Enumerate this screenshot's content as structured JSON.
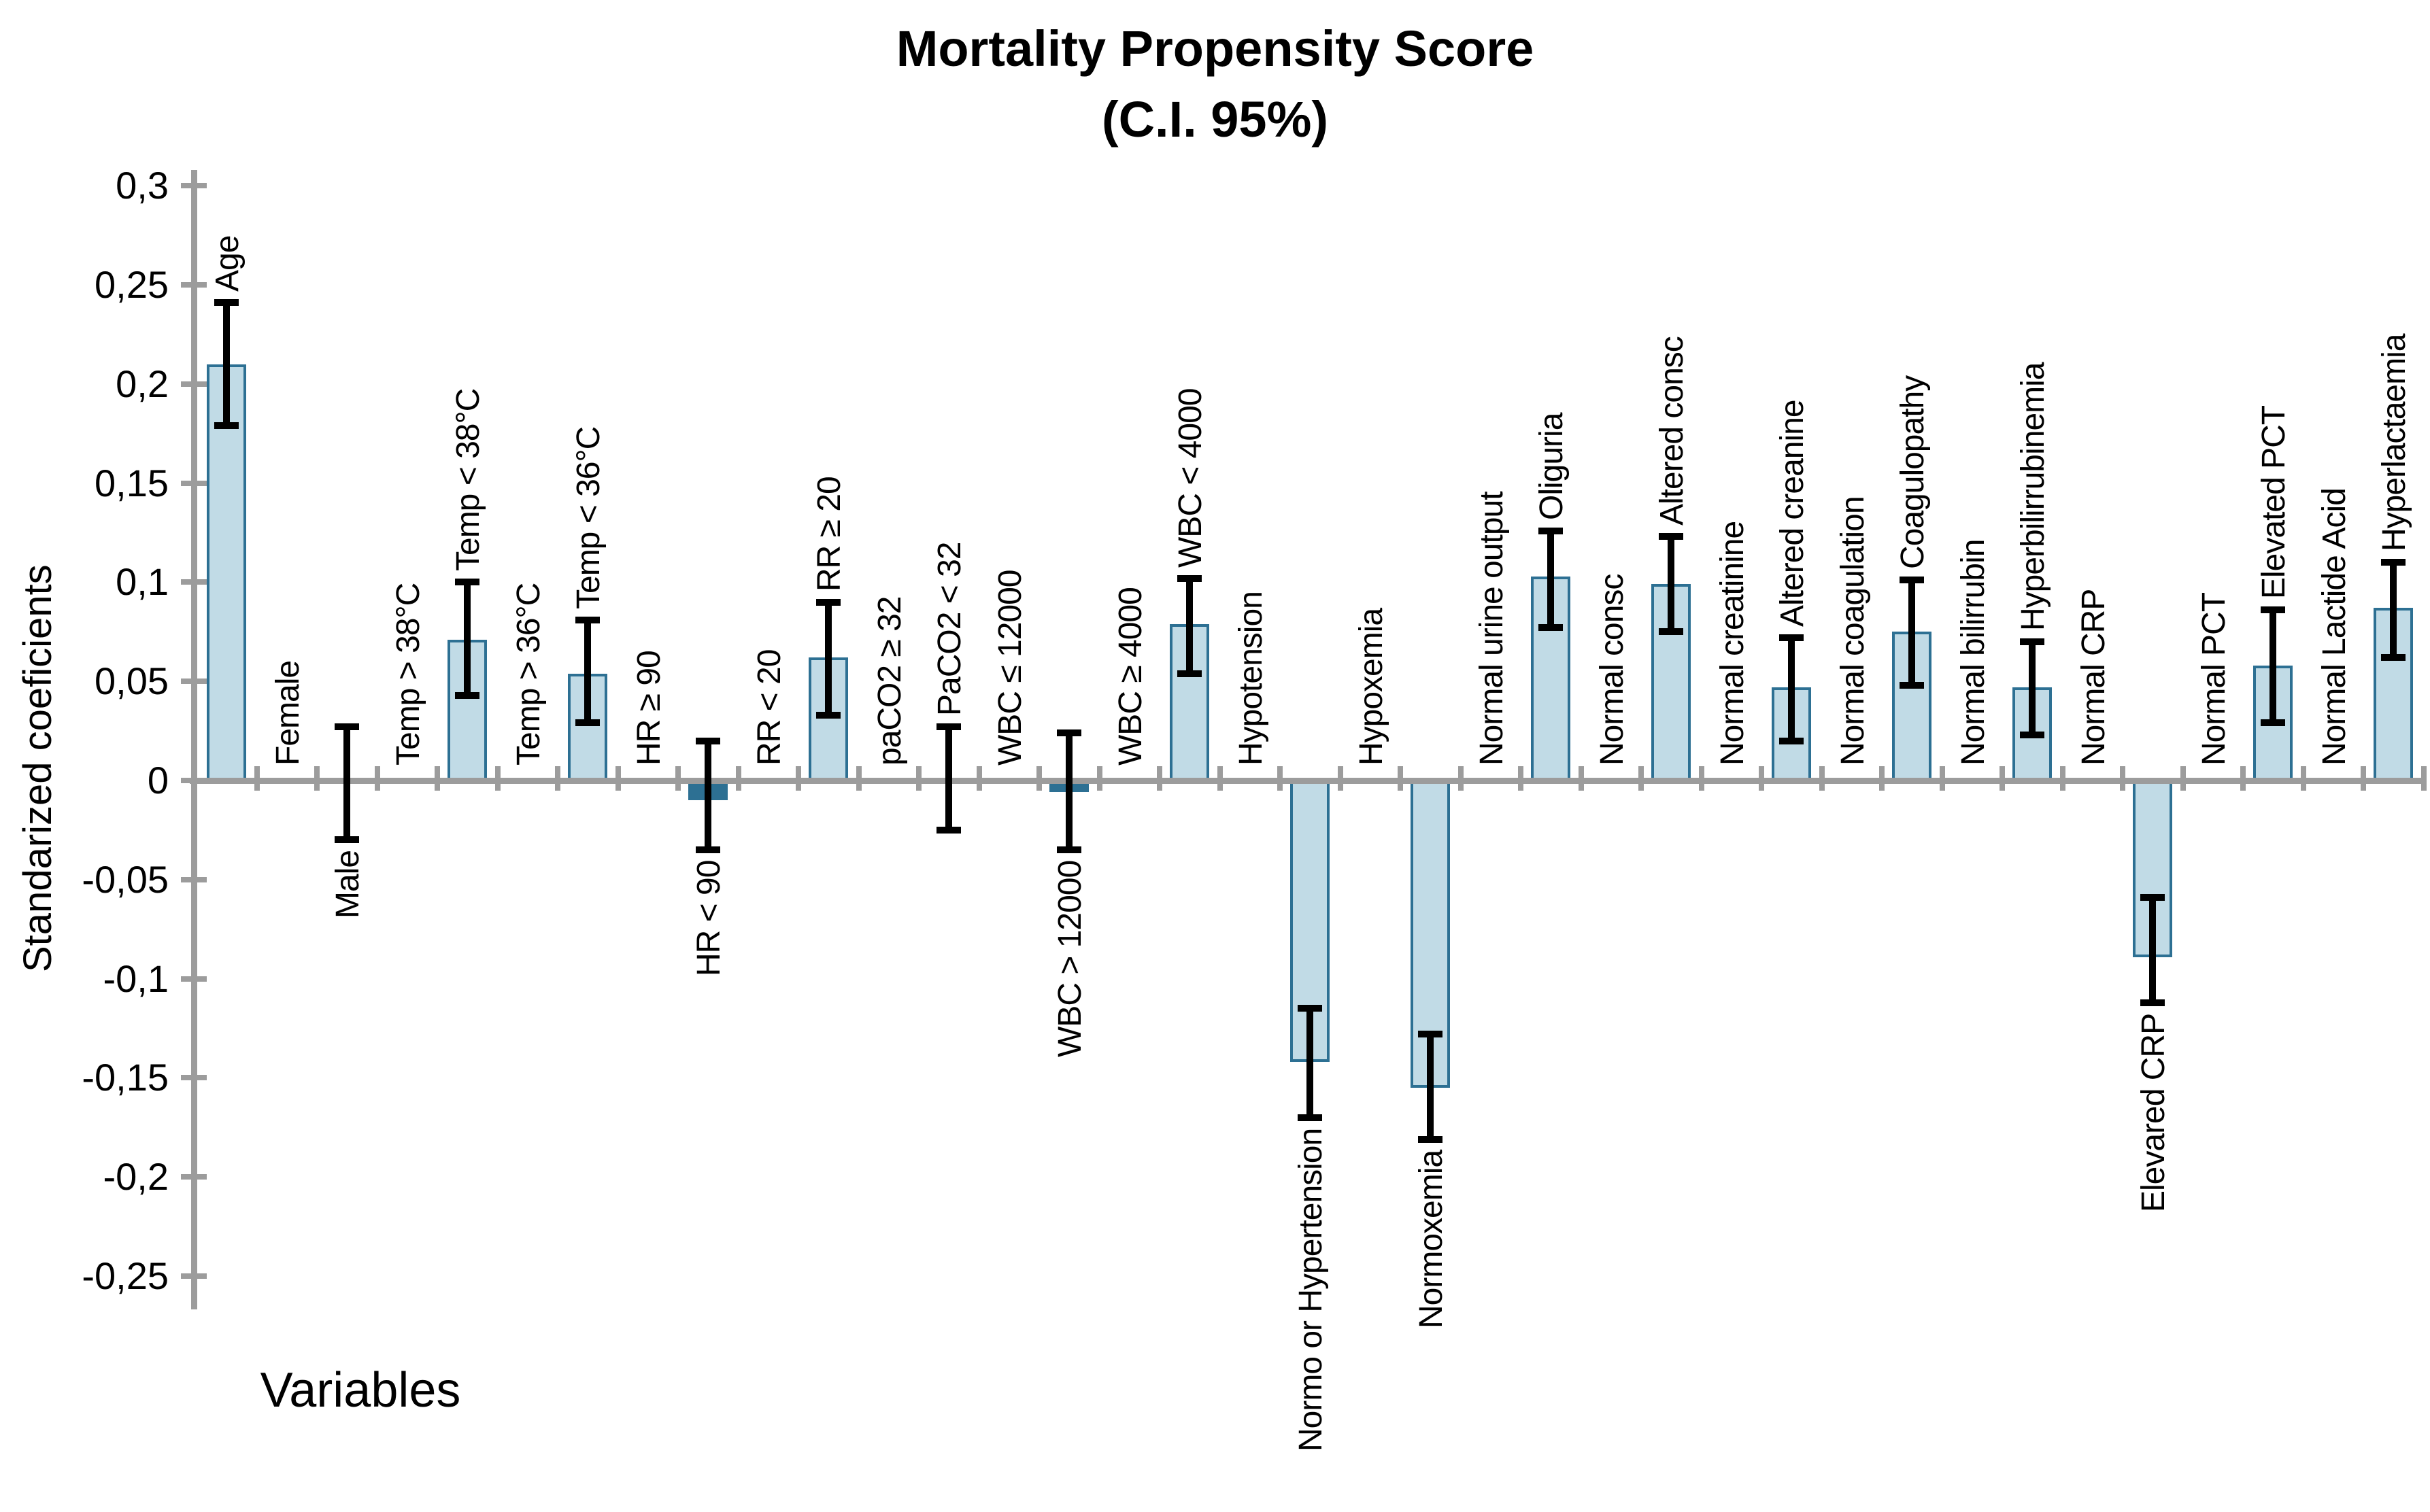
{
  "chart_data": {
    "type": "bar",
    "title": "Mortality Propensity Score",
    "subtitle": "(C.I. 95%)",
    "ylabel": "Standarized coeficients",
    "xlabel": "Variables",
    "ylim": [
      -0.25,
      0.3
    ],
    "ytick_step": 0.05,
    "grid": false,
    "legend": null,
    "error_bars": "95% confidence interval",
    "decimal_separator": ",",
    "colors": {
      "bar_fill": "#c1dbe6",
      "bar_border": "#2d7093",
      "bar_solid": "#2d7093",
      "axis": "#9c9c9c",
      "error": "#000000",
      "text": "#000000",
      "background": "#ffffff"
    },
    "yticks": [
      {
        "value": 0.3,
        "label": "0,3"
      },
      {
        "value": 0.25,
        "label": "0,25"
      },
      {
        "value": 0.2,
        "label": "0,2"
      },
      {
        "value": 0.15,
        "label": "0,15"
      },
      {
        "value": 0.1,
        "label": "0,1"
      },
      {
        "value": 0.05,
        "label": "0,05"
      },
      {
        "value": 0,
        "label": "0"
      },
      {
        "value": -0.05,
        "label": "-0,05"
      },
      {
        "value": -0.1,
        "label": "-0,1"
      },
      {
        "value": -0.15,
        "label": "-0,15"
      },
      {
        "value": -0.2,
        "label": "-0,2"
      },
      {
        "value": -0.25,
        "label": "-0,25"
      }
    ],
    "categories": [
      {
        "label": "Age",
        "value": 0.21,
        "ci": [
          0.179,
          0.241
        ],
        "side": "above"
      },
      {
        "label": "Female",
        "value": null,
        "ci": null,
        "side": "above"
      },
      {
        "label": "Male",
        "value": null,
        "ci": [
          -0.03,
          0.027
        ],
        "side": "below"
      },
      {
        "label": "Temp > 38°C",
        "value": null,
        "ci": null,
        "side": "above"
      },
      {
        "label": "Temp < 38°C",
        "value": 0.071,
        "ci": [
          0.043,
          0.1
        ],
        "side": "above"
      },
      {
        "label": "Temp > 36°C",
        "value": null,
        "ci": null,
        "side": "above"
      },
      {
        "label": "Temp < 36°C",
        "value": 0.054,
        "ci": [
          0.029,
          0.081
        ],
        "side": "above"
      },
      {
        "label": "HR ≥ 90",
        "value": null,
        "ci": null,
        "side": "above"
      },
      {
        "label": "HR < 90",
        "value": -0.01,
        "ci": [
          -0.035,
          0.02
        ],
        "side": "below",
        "solid": true
      },
      {
        "label": "RR < 20",
        "value": null,
        "ci": null,
        "side": "above"
      },
      {
        "label": "RR ≥ 20",
        "value": 0.062,
        "ci": [
          0.033,
          0.09
        ],
        "side": "above"
      },
      {
        "label": "paCO2 ≥ 32",
        "value": null,
        "ci": null,
        "side": "above"
      },
      {
        "label": "PaCO2 < 32",
        "value": null,
        "ci": [
          -0.025,
          0.027
        ],
        "side": "above"
      },
      {
        "label": "WBC ≤ 12000",
        "value": null,
        "ci": null,
        "side": "above"
      },
      {
        "label": "WBC > 12000",
        "value": -0.006,
        "ci": [
          -0.035,
          0.024
        ],
        "side": "below",
        "solid": true
      },
      {
        "label": "WBC ≥ 4000",
        "value": null,
        "ci": null,
        "side": "above"
      },
      {
        "label": "WBC < 4000",
        "value": 0.079,
        "ci": [
          0.054,
          0.102
        ],
        "side": "above"
      },
      {
        "label": "Hypotension",
        "value": null,
        "ci": null,
        "side": "above"
      },
      {
        "label": "Normo or Hypertension",
        "value": -0.142,
        "ci": [
          -0.17,
          -0.115
        ],
        "side": "below"
      },
      {
        "label": "Hypoxemia",
        "value": null,
        "ci": null,
        "side": "above"
      },
      {
        "label": "Normoxemia",
        "value": -0.155,
        "ci": [
          -0.181,
          -0.128
        ],
        "side": "below"
      },
      {
        "label": "Normal urine output",
        "value": null,
        "ci": null,
        "side": "above"
      },
      {
        "label": "Oliguria",
        "value": 0.103,
        "ci": [
          0.077,
          0.126
        ],
        "side": "above"
      },
      {
        "label": "Normal consc",
        "value": null,
        "ci": null,
        "side": "above"
      },
      {
        "label": "Altered consc",
        "value": 0.099,
        "ci": [
          0.075,
          0.123
        ],
        "side": "above"
      },
      {
        "label": "Normal creatinine",
        "value": null,
        "ci": null,
        "side": "above"
      },
      {
        "label": "Altered creanine",
        "value": 0.047,
        "ci": [
          0.02,
          0.072
        ],
        "side": "above"
      },
      {
        "label": "Normal coagulation",
        "value": null,
        "ci": null,
        "side": "above"
      },
      {
        "label": "Coagulopathy",
        "value": 0.075,
        "ci": [
          0.048,
          0.101
        ],
        "side": "above"
      },
      {
        "label": "Normal bilirrubin",
        "value": null,
        "ci": null,
        "side": "above"
      },
      {
        "label": "Hyperbilirrubinemia",
        "value": 0.047,
        "ci": [
          0.023,
          0.07
        ],
        "side": "above"
      },
      {
        "label": "Normal CRP",
        "value": null,
        "ci": null,
        "side": "above"
      },
      {
        "label": "Elevared CRP",
        "value": -0.089,
        "ci": [
          -0.112,
          -0.059
        ],
        "side": "below"
      },
      {
        "label": "Normal PCT",
        "value": null,
        "ci": null,
        "side": "above"
      },
      {
        "label": "Elevated PCT",
        "value": 0.058,
        "ci": [
          0.029,
          0.086
        ],
        "side": "above"
      },
      {
        "label": "Normal Lactide Acid",
        "value": null,
        "ci": null,
        "side": "above"
      },
      {
        "label": "Hyperlactaemia",
        "value": 0.087,
        "ci": [
          0.062,
          0.11
        ],
        "side": "above"
      }
    ]
  }
}
